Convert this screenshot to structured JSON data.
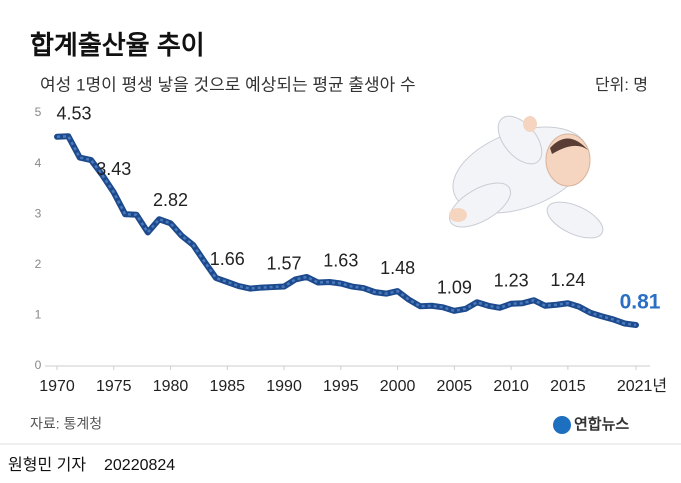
{
  "chart_data": {
    "type": "line",
    "title": "합계출산율 추이",
    "subtitle": "여성 1명이 평생 낳을 것으로 예상되는 평균 출생아 수",
    "unit_note": "단위: 명",
    "source": "자료: 통계청",
    "logo": "연합뉴스",
    "byline": "원형민 기자",
    "date": "20220824",
    "x": [
      1970,
      1971,
      1972,
      1973,
      1974,
      1975,
      1976,
      1977,
      1978,
      1979,
      1980,
      1981,
      1982,
      1983,
      1984,
      1985,
      1986,
      1987,
      1988,
      1989,
      1990,
      1991,
      1992,
      1993,
      1994,
      1995,
      1996,
      1997,
      1998,
      1999,
      2000,
      2001,
      2002,
      2003,
      2004,
      2005,
      2006,
      2007,
      2008,
      2009,
      2010,
      2011,
      2012,
      2013,
      2014,
      2015,
      2016,
      2017,
      2018,
      2019,
      2020,
      2021
    ],
    "series": [
      {
        "color": "#1d4a8c",
        "values": [
          4.53,
          4.54,
          4.12,
          4.07,
          3.77,
          3.43,
          3.0,
          2.99,
          2.64,
          2.9,
          2.82,
          2.57,
          2.39,
          2.06,
          1.74,
          1.66,
          1.58,
          1.53,
          1.55,
          1.56,
          1.57,
          1.71,
          1.76,
          1.65,
          1.66,
          1.63,
          1.57,
          1.54,
          1.46,
          1.43,
          1.48,
          1.31,
          1.18,
          1.19,
          1.16,
          1.09,
          1.13,
          1.26,
          1.19,
          1.15,
          1.23,
          1.24,
          1.3,
          1.19,
          1.21,
          1.24,
          1.17,
          1.05,
          0.98,
          0.92,
          0.84,
          0.81
        ],
        "value_labels": [
          "4.53",
          null,
          null,
          null,
          null,
          "3.43",
          null,
          null,
          null,
          null,
          "2.82",
          null,
          null,
          null,
          null,
          "1.66",
          null,
          null,
          null,
          null,
          "1.57",
          null,
          null,
          null,
          null,
          "1.63",
          null,
          null,
          null,
          null,
          "1.48",
          null,
          null,
          null,
          null,
          "1.09",
          null,
          null,
          null,
          null,
          "1.23",
          null,
          null,
          null,
          null,
          "1.24",
          null,
          null,
          null,
          null,
          null,
          "0.81"
        ]
      }
    ],
    "xlim": [
      1970,
      2021
    ],
    "xticks": [
      1970,
      1975,
      1980,
      1985,
      1990,
      1995,
      2000,
      2005,
      2010,
      2015,
      {
        "value": 2021,
        "label": "2021년"
      }
    ],
    "ylim": [
      0,
      5
    ],
    "yticks": [
      0,
      1,
      2,
      3,
      4,
      5
    ],
    "grid": false,
    "highlight_color": "#2a6fc4"
  }
}
